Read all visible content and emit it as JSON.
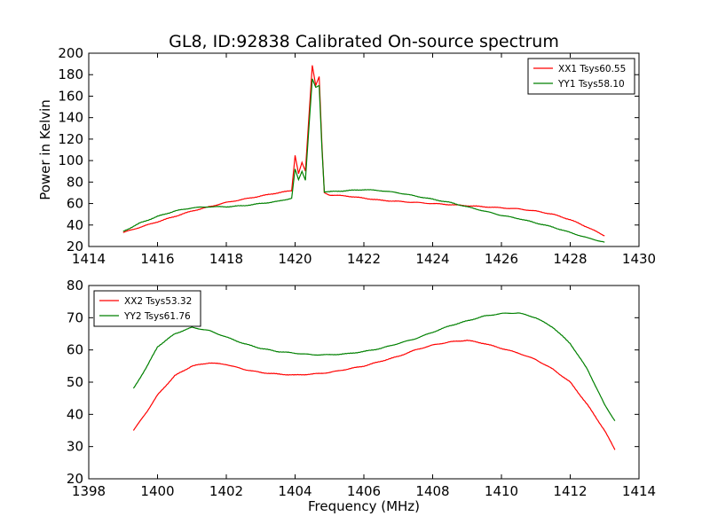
{
  "figure_title": "GL8, ID:92838 Calibrated On-source spectrum",
  "shared_ylabel": "Power in Kelvin",
  "shared_xlabel": "Frequency (MHz)",
  "colors": {
    "XX": "#ff0000",
    "YY": "#008000"
  },
  "chart_data": [
    {
      "type": "line",
      "title": "GL8, ID:92838 Calibrated On-source spectrum",
      "xlabel": "",
      "ylabel": "Power in Kelvin",
      "xlim": [
        1414,
        1430
      ],
      "ylim": [
        20,
        200
      ],
      "xticks": [
        1414,
        1416,
        1418,
        1420,
        1422,
        1424,
        1426,
        1428,
        1430
      ],
      "yticks": [
        20,
        40,
        60,
        80,
        100,
        120,
        140,
        160,
        180,
        200
      ],
      "grid": false,
      "legend_position": "top-right",
      "series": [
        {
          "name": "XX1 Tsys60.55",
          "color": "#ff0000",
          "points": [
            [
              1415.0,
              33
            ],
            [
              1415.5,
              38
            ],
            [
              1416.0,
              43
            ],
            [
              1416.5,
              48
            ],
            [
              1417.0,
              53
            ],
            [
              1417.5,
              57
            ],
            [
              1418.0,
              61
            ],
            [
              1418.5,
              64
            ],
            [
              1419.0,
              67
            ],
            [
              1419.5,
              70
            ],
            [
              1419.9,
              72
            ],
            [
              1420.0,
              105
            ],
            [
              1420.1,
              88
            ],
            [
              1420.2,
              98
            ],
            [
              1420.3,
              90
            ],
            [
              1420.4,
              140
            ],
            [
              1420.5,
              189
            ],
            [
              1420.6,
              170
            ],
            [
              1420.7,
              178
            ],
            [
              1420.78,
              115
            ],
            [
              1420.85,
              70
            ],
            [
              1421.0,
              68
            ],
            [
              1421.5,
              67
            ],
            [
              1422.0,
              65
            ],
            [
              1422.5,
              63
            ],
            [
              1423.0,
              62
            ],
            [
              1423.5,
              61
            ],
            [
              1424.0,
              60
            ],
            [
              1424.5,
              59
            ],
            [
              1425.0,
              58
            ],
            [
              1425.5,
              57
            ],
            [
              1426.0,
              56
            ],
            [
              1426.5,
              55
            ],
            [
              1427.0,
              53
            ],
            [
              1427.5,
              50
            ],
            [
              1428.0,
              45
            ],
            [
              1428.5,
              38
            ],
            [
              1429.0,
              30
            ]
          ]
        },
        {
          "name": "YY1 Tsys58.10",
          "color": "#008000",
          "points": [
            [
              1415.0,
              34
            ],
            [
              1415.5,
              42
            ],
            [
              1416.0,
              48
            ],
            [
              1416.5,
              53
            ],
            [
              1417.0,
              56
            ],
            [
              1417.5,
              57
            ],
            [
              1418.0,
              57
            ],
            [
              1418.5,
              58
            ],
            [
              1419.0,
              60
            ],
            [
              1419.5,
              62
            ],
            [
              1419.9,
              65
            ],
            [
              1420.0,
              92
            ],
            [
              1420.1,
              82
            ],
            [
              1420.2,
              90
            ],
            [
              1420.3,
              82
            ],
            [
              1420.4,
              130
            ],
            [
              1420.5,
              176
            ],
            [
              1420.6,
              168
            ],
            [
              1420.7,
              170
            ],
            [
              1420.78,
              112
            ],
            [
              1420.85,
              71
            ],
            [
              1421.0,
              71
            ],
            [
              1421.5,
              72
            ],
            [
              1422.0,
              73
            ],
            [
              1422.5,
              72
            ],
            [
              1423.0,
              70
            ],
            [
              1423.5,
              67
            ],
            [
              1424.0,
              64
            ],
            [
              1424.5,
              61
            ],
            [
              1425.0,
              57
            ],
            [
              1425.5,
              53
            ],
            [
              1426.0,
              49
            ],
            [
              1426.5,
              46
            ],
            [
              1427.0,
              42
            ],
            [
              1427.5,
              38
            ],
            [
              1428.0,
              33
            ],
            [
              1428.5,
              28
            ],
            [
              1429.0,
              24
            ]
          ]
        }
      ]
    },
    {
      "type": "line",
      "title": "",
      "xlabel": "Frequency (MHz)",
      "ylabel": "",
      "xlim": [
        1398,
        1414
      ],
      "ylim": [
        20,
        80
      ],
      "xticks": [
        1398,
        1400,
        1402,
        1404,
        1406,
        1408,
        1410,
        1412,
        1414
      ],
      "yticks": [
        20,
        30,
        40,
        50,
        60,
        70,
        80
      ],
      "grid": false,
      "legend_position": "top-left",
      "series": [
        {
          "name": "XX2 Tsys53.32",
          "color": "#ff0000",
          "points": [
            [
              1399.3,
              35
            ],
            [
              1399.7,
              41
            ],
            [
              1400.0,
              46
            ],
            [
              1400.5,
              52
            ],
            [
              1401.0,
              55
            ],
            [
              1401.5,
              56
            ],
            [
              1402.0,
              55.5
            ],
            [
              1402.5,
              54
            ],
            [
              1403.0,
              53
            ],
            [
              1403.5,
              52.5
            ],
            [
              1404.0,
              52.2
            ],
            [
              1404.5,
              52.5
            ],
            [
              1405.0,
              53
            ],
            [
              1405.5,
              54
            ],
            [
              1406.0,
              55
            ],
            [
              1406.5,
              56.5
            ],
            [
              1407.0,
              58
            ],
            [
              1407.5,
              60
            ],
            [
              1408.0,
              61.5
            ],
            [
              1408.5,
              62.5
            ],
            [
              1409.0,
              63
            ],
            [
              1409.5,
              62
            ],
            [
              1410.0,
              60.5
            ],
            [
              1410.5,
              59
            ],
            [
              1411.0,
              57
            ],
            [
              1411.5,
              54
            ],
            [
              1412.0,
              50
            ],
            [
              1412.5,
              43
            ],
            [
              1413.0,
              35
            ],
            [
              1413.3,
              29
            ]
          ]
        },
        {
          "name": "YY2 Tsys61.76",
          "color": "#008000",
          "points": [
            [
              1399.3,
              48
            ],
            [
              1399.7,
              55
            ],
            [
              1400.0,
              61
            ],
            [
              1400.5,
              65
            ],
            [
              1401.0,
              67
            ],
            [
              1401.5,
              66
            ],
            [
              1402.0,
              64
            ],
            [
              1402.5,
              62
            ],
            [
              1403.0,
              60.5
            ],
            [
              1403.5,
              59.5
            ],
            [
              1404.0,
              59
            ],
            [
              1404.5,
              58.5
            ],
            [
              1405.0,
              58.5
            ],
            [
              1405.5,
              58.8
            ],
            [
              1406.0,
              59.5
            ],
            [
              1406.5,
              60.5
            ],
            [
              1407.0,
              62
            ],
            [
              1407.5,
              63.5
            ],
            [
              1408.0,
              65.5
            ],
            [
              1408.5,
              67.5
            ],
            [
              1409.0,
              69
            ],
            [
              1409.5,
              70.5
            ],
            [
              1410.0,
              71.3
            ],
            [
              1410.5,
              71.5
            ],
            [
              1411.0,
              70
            ],
            [
              1411.5,
              67
            ],
            [
              1412.0,
              62
            ],
            [
              1412.5,
              54
            ],
            [
              1413.0,
              43
            ],
            [
              1413.3,
              38
            ]
          ]
        }
      ]
    }
  ]
}
